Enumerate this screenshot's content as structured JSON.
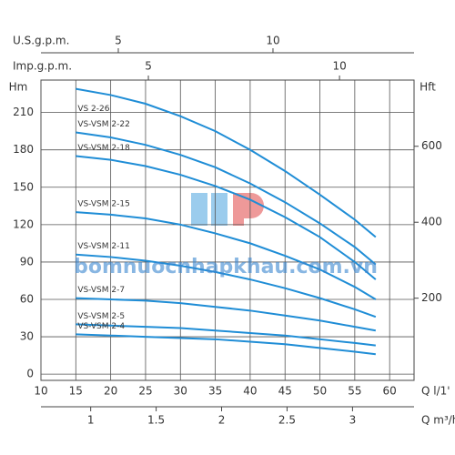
{
  "chart_data": {
    "type": "line",
    "x_label": "Q l/1'",
    "y_label": "Hm",
    "y2_label": "Hft",
    "xlim": [
      10,
      63.5
    ],
    "xticks": [
      10,
      15,
      20,
      25,
      30,
      35,
      40,
      45,
      50,
      55,
      60
    ],
    "ylim": [
      -5,
      236
    ],
    "yticks": [
      0,
      30,
      60,
      90,
      120,
      150,
      180,
      210
    ],
    "y2lim": [
      -16.4,
      774.3
    ],
    "y2ticks": [
      200,
      400,
      600
    ],
    "grid": true,
    "top_axes": [
      {
        "label": "U.S.g.p.m.",
        "xlim": [
          2.5,
          14.56
        ],
        "xticks": [
          5,
          10
        ]
      },
      {
        "label": "Imp.g.p.m.",
        "xlim": [
          2.19,
          11.95
        ],
        "xticks": [
          5,
          10
        ]
      }
    ],
    "bottom_axis2": {
      "label": "Q m³/h",
      "xlim": [
        0.62,
        3.47
      ],
      "xticks": [
        1,
        1.5,
        2,
        2.5,
        3
      ]
    },
    "watermark": "bomnuocnhapkhau.com.vn",
    "x": [
      15,
      20,
      25,
      30,
      35,
      40,
      45,
      50,
      55,
      58
    ],
    "series": [
      {
        "name": "VS 2-26",
        "color": "#1f8dd6",
        "values": [
          229,
          224,
          217,
          207,
          195,
          180,
          163,
          144,
          124,
          110
        ]
      },
      {
        "name": "VS-VSM 2-22",
        "color": "#1f8dd6",
        "values": [
          194,
          190,
          184,
          176,
          166,
          153,
          138,
          121,
          102,
          88
        ]
      },
      {
        "name": "VS-VSM 2-18",
        "color": "#1f8dd6",
        "values": [
          175,
          172,
          167,
          160,
          151,
          140,
          126,
          110,
          90,
          76
        ]
      },
      {
        "name": "VS-VSM 2-15",
        "color": "#1f8dd6",
        "values": [
          130,
          128,
          125,
          120,
          113,
          105,
          95,
          84,
          70,
          60
        ]
      },
      {
        "name": "VS-VSM 2-11",
        "color": "#1f8dd6",
        "values": [
          96,
          94,
          91,
          87,
          82,
          76,
          69,
          61,
          52,
          46
        ]
      },
      {
        "name": "VS-VSM 2-7",
        "color": "#1f8dd6",
        "values": [
          61,
          60,
          59,
          57,
          54,
          51,
          47,
          43,
          38,
          35
        ]
      },
      {
        "name": "VS-VSM 2-5",
        "color": "#1f8dd6",
        "values": [
          40,
          39,
          38,
          37,
          35,
          33,
          31,
          28,
          25,
          23
        ]
      },
      {
        "name": "VS-VSM 2-4",
        "color": "#1f8dd6",
        "values": [
          32,
          31,
          30,
          29,
          28,
          26,
          24,
          21,
          18,
          16
        ]
      }
    ]
  }
}
